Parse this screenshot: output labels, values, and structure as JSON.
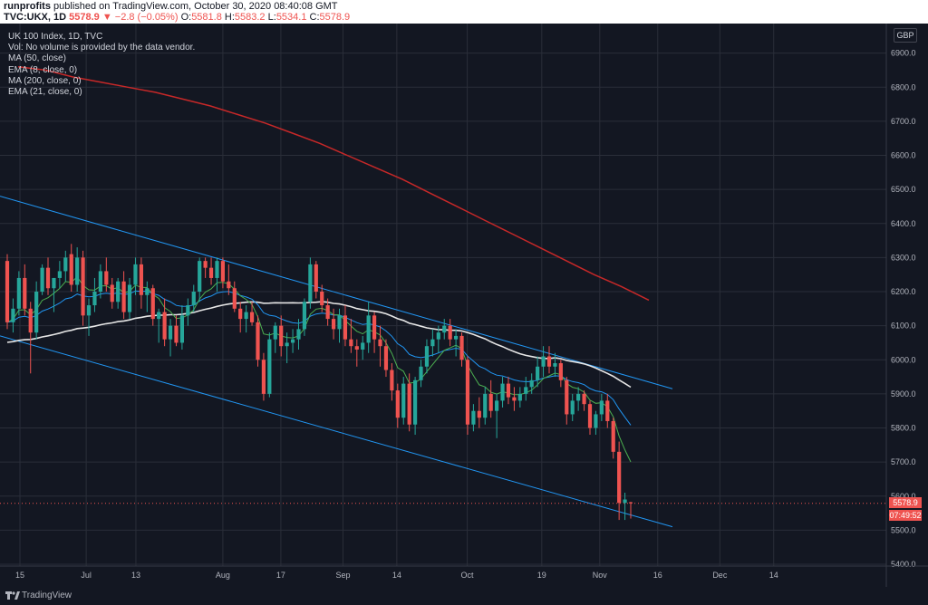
{
  "header": {
    "user": "runprofits",
    "published": "published on TradingView.com, October 30, 2020 08:40:08 GMT",
    "symbol": "TVC:UKX, 1D",
    "last": "5578.9",
    "change": "▼ −2.8 (−0.05%)",
    "o_label": "O:",
    "o": "5581.8",
    "h_label": "H:",
    "h": "5583.2",
    "l_label": "L:",
    "l": "5534.1",
    "c_label": "C:",
    "c": "5578.9"
  },
  "legend": {
    "title": "UK 100 Index, 1D, TVC",
    "vol": "Vol: No volume is provided by the data vendor.",
    "ma50": "MA (50, close)",
    "ema8": "EMA (8, close, 0)",
    "ma200": "MA (200, close, 0)",
    "ema21": "EMA (21, close, 0)"
  },
  "currency": "GBP",
  "price_tags": {
    "last": "5578.9",
    "countdown": "07:49:52"
  },
  "footer": {
    "brand": "TradingView"
  },
  "colors": {
    "background": "#131722",
    "grid": "#2a2e39",
    "up": "#26a69a",
    "down": "#ef5350",
    "ma50": "#e6e6e6",
    "ema8": "#4caf50",
    "ma200": "#c62828",
    "ema21": "#2196f3",
    "channel": "#2196f3"
  },
  "chart_data": {
    "type": "candlestick",
    "title": "UK 100 Index, 1D, TVC",
    "ylim": [
      5400,
      7000
    ],
    "y_ticks": [
      5400,
      5500,
      5600,
      5700,
      5800,
      5900,
      6000,
      6100,
      6200,
      6300,
      6400,
      6500,
      6600,
      6700,
      6800,
      6900
    ],
    "y_tick_labels": [
      "5400.0",
      "5500.0",
      "5600.0",
      "5700.0",
      "5800.0",
      "5900.0",
      "6000.0",
      "6100.0",
      "6200.0",
      "6300.0",
      "6400.0",
      "6500.0",
      "6600.0",
      "6700.0",
      "6800.0",
      "6900.0"
    ],
    "x_ticks": [
      {
        "date": "2020-06-15",
        "label": "15"
      },
      {
        "date": "2020-07-01",
        "label": "Jul"
      },
      {
        "date": "2020-07-13",
        "label": "13"
      },
      {
        "date": "2020-08-03",
        "label": "Aug"
      },
      {
        "date": "2020-08-17",
        "label": "17"
      },
      {
        "date": "2020-09-01",
        "label": "Sep"
      },
      {
        "date": "2020-09-14",
        "label": "14"
      },
      {
        "date": "2020-10-01",
        "label": "Oct"
      },
      {
        "date": "2020-10-19",
        "label": "19"
      },
      {
        "date": "2020-11-02",
        "label": "Nov"
      },
      {
        "date": "2020-11-16",
        "label": "16"
      },
      {
        "date": "2020-12-01",
        "label": "Dec"
      },
      {
        "date": "2020-12-14",
        "label": "14"
      }
    ],
    "last_price": 5578.9,
    "candles": [
      {
        "o": 6290,
        "h": 6310,
        "l": 6090,
        "c": 6110
      },
      {
        "o": 6110,
        "h": 6180,
        "l": 6080,
        "c": 6150
      },
      {
        "o": 6150,
        "h": 6260,
        "l": 6130,
        "c": 6240
      },
      {
        "o": 6240,
        "h": 6280,
        "l": 6130,
        "c": 6150
      },
      {
        "o": 6150,
        "h": 6170,
        "l": 5960,
        "c": 6080
      },
      {
        "o": 6080,
        "h": 6230,
        "l": 6060,
        "c": 6200
      },
      {
        "o": 6200,
        "h": 6280,
        "l": 6190,
        "c": 6270
      },
      {
        "o": 6270,
        "h": 6300,
        "l": 6190,
        "c": 6210
      },
      {
        "o": 6210,
        "h": 6240,
        "l": 6140,
        "c": 6240
      },
      {
        "o": 6240,
        "h": 6290,
        "l": 6210,
        "c": 6260
      },
      {
        "o": 6260,
        "h": 6320,
        "l": 6230,
        "c": 6300
      },
      {
        "o": 6310,
        "h": 6340,
        "l": 6200,
        "c": 6220
      },
      {
        "o": 6220,
        "h": 6330,
        "l": 6200,
        "c": 6300
      },
      {
        "o": 6300,
        "h": 6320,
        "l": 6100,
        "c": 6130
      },
      {
        "o": 6130,
        "h": 6180,
        "l": 6070,
        "c": 6160
      },
      {
        "o": 6160,
        "h": 6240,
        "l": 6140,
        "c": 6200
      },
      {
        "o": 6200,
        "h": 6280,
        "l": 6180,
        "c": 6260
      },
      {
        "o": 6260,
        "h": 6300,
        "l": 6200,
        "c": 6220
      },
      {
        "o": 6220,
        "h": 6240,
        "l": 6150,
        "c": 6170
      },
      {
        "o": 6170,
        "h": 6240,
        "l": 6150,
        "c": 6230
      },
      {
        "o": 6230,
        "h": 6260,
        "l": 6120,
        "c": 6140
      },
      {
        "o": 6140,
        "h": 6240,
        "l": 6120,
        "c": 6220
      },
      {
        "o": 6220,
        "h": 6300,
        "l": 6190,
        "c": 6280
      },
      {
        "o": 6280,
        "h": 6300,
        "l": 6150,
        "c": 6190
      },
      {
        "o": 6190,
        "h": 6230,
        "l": 6140,
        "c": 6210
      },
      {
        "o": 6210,
        "h": 6220,
        "l": 6100,
        "c": 6120
      },
      {
        "o": 6120,
        "h": 6150,
        "l": 6050,
        "c": 6140
      },
      {
        "o": 6140,
        "h": 6180,
        "l": 6040,
        "c": 6060
      },
      {
        "o": 6060,
        "h": 6120,
        "l": 6010,
        "c": 6100
      },
      {
        "o": 6100,
        "h": 6130,
        "l": 6040,
        "c": 6050
      },
      {
        "o": 6050,
        "h": 6160,
        "l": 6030,
        "c": 6130
      },
      {
        "o": 6130,
        "h": 6180,
        "l": 6100,
        "c": 6160
      },
      {
        "o": 6160,
        "h": 6220,
        "l": 6140,
        "c": 6200
      },
      {
        "o": 6200,
        "h": 6300,
        "l": 6170,
        "c": 6290
      },
      {
        "o": 6290,
        "h": 6300,
        "l": 6240,
        "c": 6270
      },
      {
        "o": 6270,
        "h": 6300,
        "l": 6220,
        "c": 6240
      },
      {
        "o": 6240,
        "h": 6300,
        "l": 6200,
        "c": 6290
      },
      {
        "o": 6290,
        "h": 6300,
        "l": 6210,
        "c": 6230
      },
      {
        "o": 6230,
        "h": 6280,
        "l": 6190,
        "c": 6210
      },
      {
        "o": 6210,
        "h": 6230,
        "l": 6140,
        "c": 6150
      },
      {
        "o": 6150,
        "h": 6170,
        "l": 6080,
        "c": 6120
      },
      {
        "o": 6120,
        "h": 6160,
        "l": 6080,
        "c": 6140
      },
      {
        "o": 6140,
        "h": 6170,
        "l": 6100,
        "c": 6110
      },
      {
        "o": 6110,
        "h": 6130,
        "l": 5980,
        "c": 6000
      },
      {
        "o": 6000,
        "h": 6020,
        "l": 5880,
        "c": 5900
      },
      {
        "o": 5900,
        "h": 6080,
        "l": 5890,
        "c": 6060
      },
      {
        "o": 6060,
        "h": 6110,
        "l": 6020,
        "c": 6100
      },
      {
        "o": 6100,
        "h": 6130,
        "l": 6010,
        "c": 6040
      },
      {
        "o": 6040,
        "h": 6080,
        "l": 5990,
        "c": 6050
      },
      {
        "o": 6050,
        "h": 6090,
        "l": 6020,
        "c": 6060
      },
      {
        "o": 6060,
        "h": 6120,
        "l": 6030,
        "c": 6090
      },
      {
        "o": 6090,
        "h": 6180,
        "l": 6070,
        "c": 6170
      },
      {
        "o": 6170,
        "h": 6300,
        "l": 6150,
        "c": 6280
      },
      {
        "o": 6280,
        "h": 6290,
        "l": 6180,
        "c": 6200
      },
      {
        "o": 6200,
        "h": 6220,
        "l": 6140,
        "c": 6160
      },
      {
        "o": 6160,
        "h": 6180,
        "l": 6100,
        "c": 6120
      },
      {
        "o": 6120,
        "h": 6150,
        "l": 6060,
        "c": 6090
      },
      {
        "o": 6090,
        "h": 6150,
        "l": 6050,
        "c": 6130
      },
      {
        "o": 6130,
        "h": 6160,
        "l": 6040,
        "c": 6060
      },
      {
        "o": 6060,
        "h": 6120,
        "l": 6020,
        "c": 6040
      },
      {
        "o": 6040,
        "h": 6060,
        "l": 5980,
        "c": 6030
      },
      {
        "o": 6030,
        "h": 6070,
        "l": 6000,
        "c": 6050
      },
      {
        "o": 6050,
        "h": 6170,
        "l": 6020,
        "c": 6130
      },
      {
        "o": 6130,
        "h": 6140,
        "l": 6020,
        "c": 6060
      },
      {
        "o": 6060,
        "h": 6100,
        "l": 5980,
        "c": 6040
      },
      {
        "o": 6040,
        "h": 6060,
        "l": 5950,
        "c": 5970
      },
      {
        "o": 5970,
        "h": 5990,
        "l": 5880,
        "c": 5910
      },
      {
        "o": 5910,
        "h": 5930,
        "l": 5800,
        "c": 5830
      },
      {
        "o": 5830,
        "h": 5950,
        "l": 5810,
        "c": 5930
      },
      {
        "o": 5930,
        "h": 5960,
        "l": 5790,
        "c": 5810
      },
      {
        "o": 5810,
        "h": 5950,
        "l": 5780,
        "c": 5940
      },
      {
        "o": 5940,
        "h": 6000,
        "l": 5920,
        "c": 5980
      },
      {
        "o": 5980,
        "h": 6060,
        "l": 5960,
        "c": 6040
      },
      {
        "o": 6040,
        "h": 6090,
        "l": 6010,
        "c": 6060
      },
      {
        "o": 6060,
        "h": 6100,
        "l": 6020,
        "c": 6080
      },
      {
        "o": 6080,
        "h": 6120,
        "l": 6060,
        "c": 6100
      },
      {
        "o": 6100,
        "h": 6120,
        "l": 6040,
        "c": 6060
      },
      {
        "o": 6060,
        "h": 6090,
        "l": 6010,
        "c": 6070
      },
      {
        "o": 6070,
        "h": 6080,
        "l": 5980,
        "c": 6000
      },
      {
        "o": 6000,
        "h": 6010,
        "l": 5780,
        "c": 5810
      },
      {
        "o": 5810,
        "h": 5870,
        "l": 5790,
        "c": 5850
      },
      {
        "o": 5850,
        "h": 5890,
        "l": 5800,
        "c": 5830
      },
      {
        "o": 5830,
        "h": 5920,
        "l": 5810,
        "c": 5900
      },
      {
        "o": 5900,
        "h": 5940,
        "l": 5830,
        "c": 5850
      },
      {
        "o": 5850,
        "h": 5900,
        "l": 5770,
        "c": 5880
      },
      {
        "o": 5880,
        "h": 5950,
        "l": 5860,
        "c": 5930
      },
      {
        "o": 5930,
        "h": 5950,
        "l": 5870,
        "c": 5890
      },
      {
        "o": 5890,
        "h": 5920,
        "l": 5850,
        "c": 5880
      },
      {
        "o": 5880,
        "h": 5920,
        "l": 5860,
        "c": 5900
      },
      {
        "o": 5900,
        "h": 5950,
        "l": 5880,
        "c": 5920
      },
      {
        "o": 5920,
        "h": 5960,
        "l": 5900,
        "c": 5940
      },
      {
        "o": 5940,
        "h": 6010,
        "l": 5920,
        "c": 5980
      },
      {
        "o": 5980,
        "h": 6040,
        "l": 5950,
        "c": 6010
      },
      {
        "o": 6010,
        "h": 6040,
        "l": 5960,
        "c": 5980
      },
      {
        "o": 5980,
        "h": 6020,
        "l": 5950,
        "c": 5990
      },
      {
        "o": 5990,
        "h": 6000,
        "l": 5920,
        "c": 5940
      },
      {
        "o": 5940,
        "h": 5950,
        "l": 5810,
        "c": 5840
      },
      {
        "o": 5840,
        "h": 5900,
        "l": 5820,
        "c": 5880
      },
      {
        "o": 5880,
        "h": 5920,
        "l": 5850,
        "c": 5900
      },
      {
        "o": 5900,
        "h": 5910,
        "l": 5850,
        "c": 5870
      },
      {
        "o": 5870,
        "h": 5880,
        "l": 5780,
        "c": 5800
      },
      {
        "o": 5800,
        "h": 5850,
        "l": 5780,
        "c": 5840
      },
      {
        "o": 5840,
        "h": 5900,
        "l": 5820,
        "c": 5880
      },
      {
        "o": 5880,
        "h": 5900,
        "l": 5800,
        "c": 5820
      },
      {
        "o": 5820,
        "h": 5830,
        "l": 5710,
        "c": 5730
      },
      {
        "o": 5730,
        "h": 5760,
        "l": 5530,
        "c": 5580
      },
      {
        "o": 5580,
        "h": 5610,
        "l": 5530,
        "c": 5590
      },
      {
        "o": 5581.8,
        "h": 5583.2,
        "l": 5534.1,
        "c": 5578.9
      }
    ],
    "ma200": [
      6860,
      6850,
      6830,
      6815,
      6800,
      6785,
      6765,
      6745,
      6720,
      6695,
      6665,
      6635,
      6600,
      6565,
      6530,
      6490,
      6450,
      6410,
      6370,
      6330,
      6290,
      6250,
      6215,
      6175
    ],
    "channel_upper": {
      "start": 6480,
      "end": 5915
    },
    "channel_lower": {
      "start": 6070,
      "end": 5510
    }
  }
}
